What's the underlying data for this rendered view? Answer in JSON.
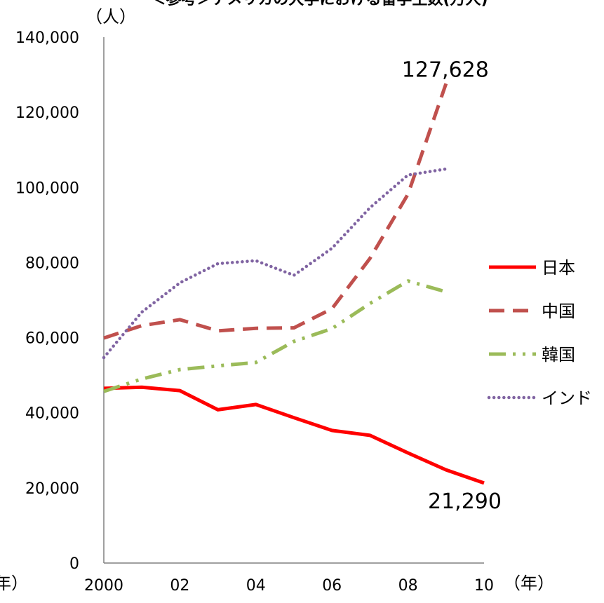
{
  "chart_data": {
    "type": "line",
    "title": "＜参考＞アメリカの大学における留学生数(万人)",
    "y_unit": "（人）",
    "x_unit": "（年）",
    "x_unit_left_fragment": "年）",
    "x": [
      2000,
      2001,
      2002,
      2003,
      2004,
      2005,
      2006,
      2007,
      2008,
      2009,
      2010
    ],
    "x_tick_values": [
      2000,
      2002,
      2004,
      2006,
      2008,
      2010
    ],
    "x_tick_labels": [
      "2000",
      "02",
      "04",
      "06",
      "08",
      "10"
    ],
    "ylim": [
      0,
      140000
    ],
    "xlim": [
      2000,
      2010
    ],
    "y_tick_values": [
      0,
      20000,
      40000,
      60000,
      80000,
      100000,
      120000,
      140000
    ],
    "y_tick_labels": [
      "0",
      "20,000",
      "40,000",
      "60,000",
      "80,000",
      "100,000",
      "120,000",
      "140,000"
    ],
    "grid": false,
    "legend_position": "right",
    "series": [
      {
        "name": "日本",
        "color": "#ff0000",
        "style": "solid",
        "x": [
          2000,
          2001,
          2002,
          2003,
          2004,
          2005,
          2006,
          2007,
          2008,
          2009,
          2010
        ],
        "values": [
          46500,
          46800,
          45900,
          40800,
          42200,
          38700,
          35300,
          34000,
          29300,
          24800,
          21290
        ]
      },
      {
        "name": "中国",
        "color": "#c0504d",
        "style": "dashed",
        "x": [
          2000,
          2001,
          2002,
          2003,
          2004,
          2005,
          2006,
          2007,
          2008,
          2009
        ],
        "values": [
          59900,
          63200,
          64800,
          61800,
          62500,
          62600,
          67700,
          81100,
          98200,
          127628
        ]
      },
      {
        "name": "韓国",
        "color": "#9bbb59",
        "style": "dashdotdot",
        "x": [
          2000,
          2001,
          2002,
          2003,
          2004,
          2005,
          2006,
          2007,
          2008,
          2009
        ],
        "values": [
          45700,
          49000,
          51500,
          52500,
          53400,
          59000,
          62400,
          69100,
          75100,
          72200
        ]
      },
      {
        "name": "インド",
        "color": "#8064a2",
        "style": "dotted",
        "x": [
          2000,
          2001,
          2002,
          2003,
          2004,
          2005,
          2006,
          2007,
          2008,
          2009
        ],
        "values": [
          54700,
          66800,
          74600,
          79700,
          80500,
          76600,
          83800,
          94600,
          103300,
          104900
        ]
      }
    ],
    "annotations": [
      {
        "text": "127,628",
        "series": "中国",
        "x": 2009,
        "y": 127628
      },
      {
        "text": "21,290",
        "series": "日本",
        "x": 2010,
        "y": 21290
      }
    ]
  }
}
